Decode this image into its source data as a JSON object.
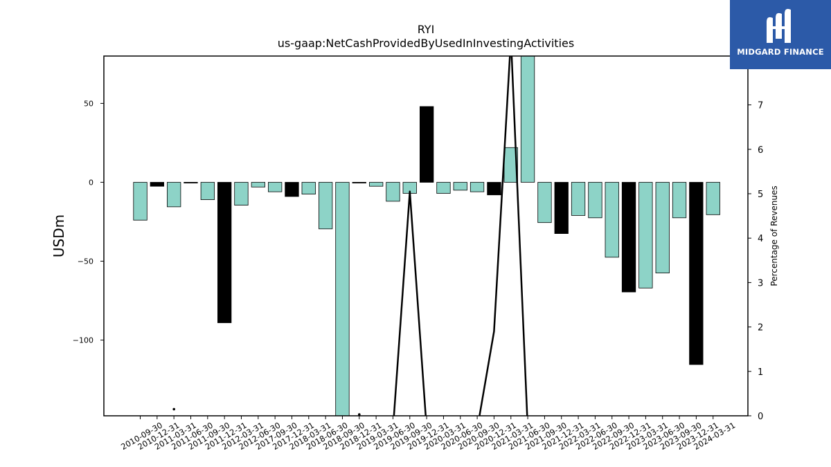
{
  "logo": {
    "text": "MIDGARD FINANCE"
  },
  "chart_data": {
    "type": "bar",
    "title": "RYI",
    "subtitle": "us-gaap:NetCashProvidedByUsedInInvestingActivities",
    "ylabel": "USDm",
    "ylabel_right": "Percentage of Revenues",
    "ylim": [
      -148,
      80
    ],
    "ylim_right": [
      0,
      8.1
    ],
    "yticks": [
      -100,
      -50,
      0,
      50
    ],
    "yticks_right": [
      0,
      1,
      2,
      3,
      4,
      5,
      6,
      7
    ],
    "categories": [
      "2010-09-30",
      "2010-12-31",
      "2011-03-31",
      "2011-06-30",
      "2011-09-30",
      "2011-12-31",
      "2012-03-31",
      "2012-06-30",
      "2017-09-30",
      "2017-12-31",
      "2018-03-31",
      "2018-06-30",
      "2018-09-30",
      "2018-12-31",
      "2019-03-31",
      "2019-06-30",
      "2019-09-30",
      "2019-12-31",
      "2020-03-31",
      "2020-06-30",
      "2020-09-30",
      "2020-12-31",
      "2021-03-31",
      "2021-06-30",
      "2021-09-30",
      "2021-12-31",
      "2022-03-31",
      "2022-06-30",
      "2022-09-30",
      "2022-12-31",
      "2023-03-31",
      "2023-06-30",
      "2023-09-30",
      "2023-12-31",
      "2024-03-31"
    ],
    "series": [
      {
        "type": "bar",
        "values": [
          -24,
          -2.5,
          -15.5,
          -0.5,
          -11,
          -89,
          -14.5,
          -3,
          -6,
          -9,
          -7.5,
          -29.5,
          -150,
          -0.5,
          -2.5,
          -12,
          -7,
          48,
          -7,
          -5,
          -6,
          -8,
          22,
          82,
          -25.5,
          -32.5,
          -21,
          -22.5,
          -47.5,
          -69.5,
          -67,
          -57.5,
          -22.5,
          -115.5,
          -20.5
        ],
        "colors": [
          "#8dd3c7",
          "#000000",
          "#8dd3c7",
          "#000000",
          "#8dd3c7",
          "#000000",
          "#8dd3c7",
          "#8dd3c7",
          "#8dd3c7",
          "#000000",
          "#8dd3c7",
          "#8dd3c7",
          "#8dd3c7",
          "#000000",
          "#8dd3c7",
          "#8dd3c7",
          "#8dd3c7",
          "#000000",
          "#8dd3c7",
          "#8dd3c7",
          "#8dd3c7",
          "#000000",
          "#8dd3c7",
          "#8dd3c7",
          "#8dd3c7",
          "#000000",
          "#8dd3c7",
          "#8dd3c7",
          "#8dd3c7",
          "#000000",
          "#8dd3c7",
          "#8dd3c7",
          "#8dd3c7",
          "#000000",
          "#8dd3c7"
        ]
      },
      {
        "type": "line",
        "axis": "right",
        "values": [
          null,
          null,
          0.15,
          null,
          null,
          null,
          null,
          null,
          null,
          null,
          null,
          null,
          null,
          0.03,
          null,
          -0.3,
          5.05,
          -0.3,
          null,
          null,
          -0.3,
          1.9,
          8.5,
          -0.3,
          null,
          null,
          null,
          null,
          null,
          null,
          null,
          null,
          null,
          null,
          null
        ]
      }
    ]
  }
}
